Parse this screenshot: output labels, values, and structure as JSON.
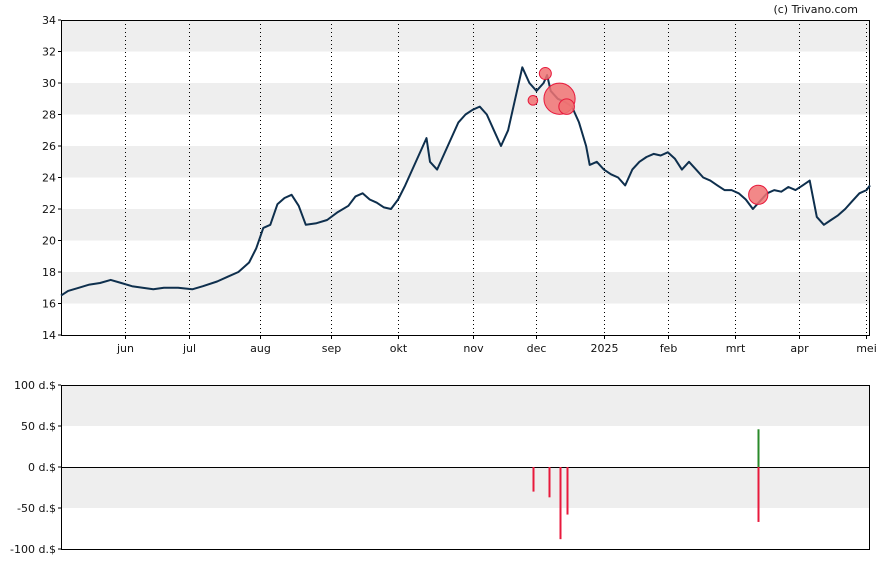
{
  "copyright": "(c) Trivano.com",
  "colors": {
    "band": "#eeeeee",
    "price_line": "#0e2f4d",
    "sell": "#e8193c",
    "buy": "#2a8a2a",
    "bubble_fill": "#f07373",
    "axis": "#000000"
  },
  "chart_data": [
    {
      "type": "line",
      "x_ticks": [
        "jun",
        "jul",
        "aug",
        "sep",
        "okt",
        "nov",
        "dec",
        "2025",
        "feb",
        "mrt",
        "apr",
        "mei"
      ],
      "y_ticks": [
        "14",
        "16",
        "18",
        "20",
        "22",
        "24",
        "26",
        "28",
        "30",
        "32",
        "34"
      ],
      "ylim": [
        14,
        34
      ],
      "grid": {
        "x_dotted": true,
        "y_bands": true
      },
      "series": [
        {
          "points": [
            [
              0,
              16.5
            ],
            [
              2,
              16.8
            ],
            [
              5,
              17.0
            ],
            [
              8,
              17.2
            ],
            [
              11,
              17.3
            ],
            [
              14,
              17.5
            ],
            [
              17,
              17.3
            ],
            [
              20,
              17.1
            ],
            [
              23,
              17.0
            ],
            [
              26,
              16.9
            ],
            [
              29,
              17.0
            ],
            [
              33,
              17.0
            ],
            [
              37,
              16.9
            ],
            [
              40,
              17.1
            ],
            [
              44,
              17.4
            ],
            [
              47,
              17.7
            ],
            [
              50,
              18.0
            ],
            [
              53,
              18.6
            ],
            [
              55,
              19.5
            ],
            [
              57,
              20.8
            ],
            [
              59,
              21.0
            ],
            [
              61,
              22.3
            ],
            [
              63,
              22.7
            ],
            [
              65,
              22.9
            ],
            [
              67,
              22.2
            ],
            [
              69,
              21.0
            ],
            [
              72,
              21.1
            ],
            [
              75,
              21.3
            ],
            [
              78,
              21.8
            ],
            [
              81,
              22.2
            ],
            [
              83,
              22.8
            ],
            [
              85,
              23.0
            ],
            [
              87,
              22.6
            ],
            [
              89,
              22.4
            ],
            [
              91,
              22.1
            ],
            [
              93,
              22.0
            ],
            [
              95,
              22.6
            ],
            [
              97,
              23.5
            ],
            [
              99,
              24.5
            ],
            [
              101,
              25.5
            ],
            [
              103,
              26.5
            ],
            [
              104,
              25.0
            ],
            [
              106,
              24.5
            ],
            [
              108,
              25.5
            ],
            [
              110,
              26.5
            ],
            [
              112,
              27.5
            ],
            [
              114,
              28.0
            ],
            [
              116,
              28.3
            ],
            [
              118,
              28.5
            ],
            [
              120,
              28.0
            ],
            [
              122,
              27.0
            ],
            [
              124,
              26.0
            ],
            [
              126,
              27.0
            ],
            [
              128,
              29.0
            ],
            [
              130,
              31.0
            ],
            [
              132,
              30.0
            ],
            [
              134,
              29.5
            ],
            [
              136,
              30.0
            ],
            [
              137,
              30.5
            ],
            [
              138,
              29.5
            ],
            [
              140,
              29.0
            ],
            [
              142,
              28.8
            ],
            [
              144,
              28.5
            ],
            [
              146,
              27.5
            ],
            [
              148,
              26.0
            ],
            [
              149,
              24.8
            ],
            [
              151,
              25.0
            ],
            [
              153,
              24.5
            ],
            [
              155,
              24.2
            ],
            [
              157,
              24.0
            ],
            [
              159,
              23.5
            ],
            [
              161,
              24.5
            ],
            [
              163,
              25.0
            ],
            [
              165,
              25.3
            ],
            [
              167,
              25.5
            ],
            [
              169,
              25.4
            ],
            [
              171,
              25.6
            ],
            [
              173,
              25.2
            ],
            [
              175,
              24.5
            ],
            [
              177,
              25.0
            ],
            [
              179,
              24.5
            ],
            [
              181,
              24.0
            ],
            [
              183,
              23.8
            ],
            [
              185,
              23.5
            ],
            [
              187,
              23.2
            ],
            [
              189,
              23.2
            ],
            [
              191,
              23.0
            ],
            [
              193,
              22.6
            ],
            [
              195,
              22.0
            ],
            [
              197,
              22.5
            ],
            [
              199,
              23.0
            ],
            [
              201,
              23.2
            ],
            [
              203,
              23.1
            ],
            [
              205,
              23.4
            ],
            [
              207,
              23.2
            ],
            [
              209,
              23.5
            ],
            [
              211,
              23.8
            ],
            [
              213,
              21.5
            ],
            [
              215,
              21.0
            ],
            [
              217,
              21.3
            ],
            [
              219,
              21.6
            ],
            [
              221,
              22.0
            ],
            [
              223,
              22.5
            ],
            [
              225,
              23.0
            ],
            [
              227,
              23.2
            ],
            [
              228,
              23.5
            ]
          ]
        }
      ],
      "bubbles": [
        {
          "x": 133,
          "y": 28.9,
          "r": 0.8
        },
        {
          "x": 136.5,
          "y": 30.6,
          "r": 1.0
        },
        {
          "x": 140.5,
          "y": 29.0,
          "r": 2.6
        },
        {
          "x": 142.5,
          "y": 28.5,
          "r": 1.3
        },
        {
          "x": 196.5,
          "y": 22.9,
          "r": 1.6
        }
      ],
      "x_tick_positions": [
        18,
        36,
        56,
        76,
        95,
        116,
        134,
        153,
        171,
        190,
        208,
        227
      ],
      "x_range": [
        0,
        228
      ]
    },
    {
      "type": "bar",
      "y_ticks": [
        "100 d.$",
        "50 d.$",
        "0 d.$",
        "-50 d.$",
        "-100 d.$"
      ],
      "ylim": [
        -100,
        100
      ],
      "grid": {
        "y_bands": true
      },
      "bars": [
        {
          "x": 133,
          "value": -30,
          "kind": "sell"
        },
        {
          "x": 137.5,
          "value": -37,
          "kind": "sell"
        },
        {
          "x": 140.5,
          "value": -88,
          "kind": "sell"
        },
        {
          "x": 142.5,
          "value": -58,
          "kind": "sell"
        },
        {
          "x": 196.5,
          "value": 46,
          "kind": "buy"
        },
        {
          "x": 196.5,
          "value": -67,
          "kind": "sell"
        }
      ],
      "x_range": [
        0,
        228
      ]
    }
  ]
}
